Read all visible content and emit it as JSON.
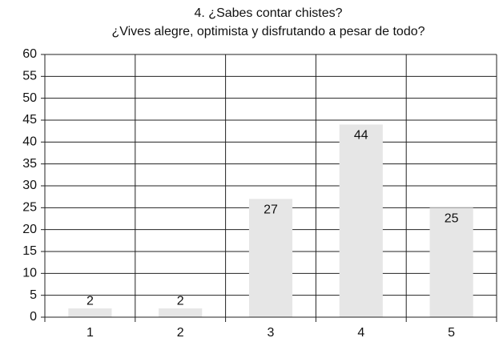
{
  "chart_data": {
    "type": "bar",
    "title": "4. ¿Sabes contar chistes?",
    "subtitle": "¿Vives alegre, optimista y disfrutando a pesar de todo?",
    "categories": [
      "1",
      "2",
      "3",
      "4",
      "5"
    ],
    "values": [
      2,
      2,
      27,
      44,
      25
    ],
    "color": "#e6e6e6",
    "ylim": [
      0,
      60
    ],
    "yticks": [
      0,
      5,
      10,
      15,
      20,
      25,
      30,
      35,
      40,
      45,
      50,
      55,
      60
    ],
    "grid": true
  }
}
